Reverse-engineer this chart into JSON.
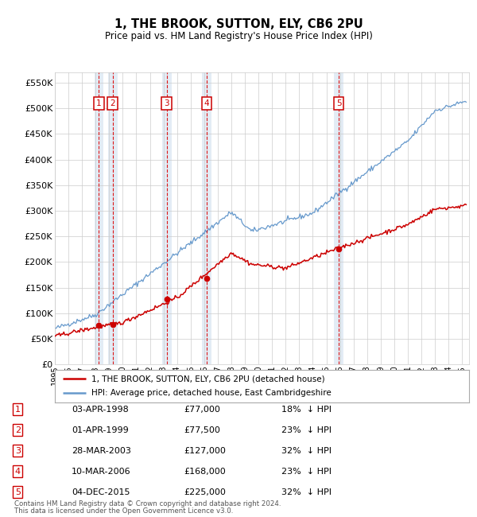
{
  "title": "1, THE BROOK, SUTTON, ELY, CB6 2PU",
  "subtitle": "Price paid vs. HM Land Registry's House Price Index (HPI)",
  "ylabel_ticks": [
    "£0",
    "£50K",
    "£100K",
    "£150K",
    "£200K",
    "£250K",
    "£300K",
    "£350K",
    "£400K",
    "£450K",
    "£500K",
    "£550K"
  ],
  "ylim": [
    0,
    570000
  ],
  "yticks": [
    0,
    50000,
    100000,
    150000,
    200000,
    250000,
    300000,
    350000,
    400000,
    450000,
    500000,
    550000
  ],
  "xstart": 1995.0,
  "xend": 2025.5,
  "sales": [
    {
      "num": 1,
      "date": "03-APR-1998",
      "price": 77000,
      "year": 1998.25,
      "pct": "18%",
      "dir": "↓"
    },
    {
      "num": 2,
      "date": "01-APR-1999",
      "price": 77500,
      "year": 1999.25,
      "pct": "23%",
      "dir": "↓"
    },
    {
      "num": 3,
      "date": "28-MAR-2003",
      "price": 127000,
      "year": 2003.23,
      "pct": "32%",
      "dir": "↓"
    },
    {
      "num": 4,
      "date": "10-MAR-2006",
      "price": 168000,
      "year": 2006.19,
      "pct": "23%",
      "dir": "↓"
    },
    {
      "num": 5,
      "date": "04-DEC-2015",
      "price": 225000,
      "year": 2015.92,
      "pct": "32%",
      "dir": "↓"
    }
  ],
  "legend_line1": "1, THE BROOK, SUTTON, ELY, CB6 2PU (detached house)",
  "legend_line2": "HPI: Average price, detached house, East Cambridgeshire",
  "footer1": "Contains HM Land Registry data © Crown copyright and database right 2024.",
  "footer2": "This data is licensed under the Open Government Licence v3.0.",
  "red_color": "#cc0000",
  "blue_color": "#6699cc",
  "grid_color": "#cccccc",
  "sale_box_color": "#cc0000",
  "dashed_line_color": "#dd0000",
  "bg_color": "#ffffff"
}
